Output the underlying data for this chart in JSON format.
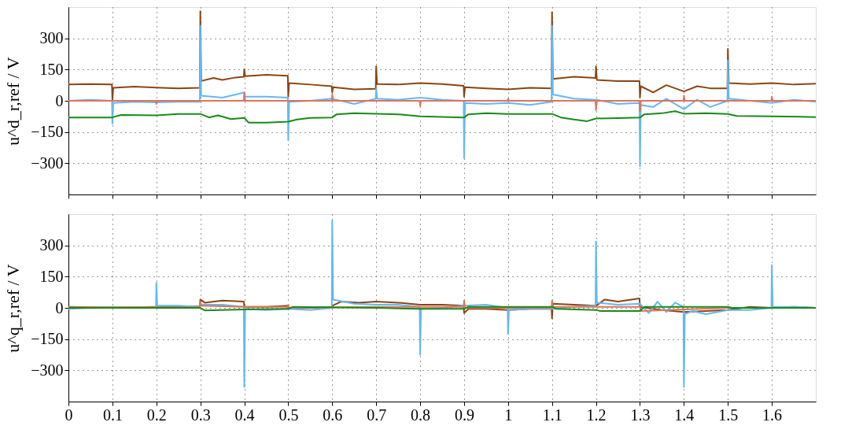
{
  "chart_data": [
    {
      "type": "line",
      "ylabel": "u^d_r,ref / V",
      "xlim": [
        0,
        1.7
      ],
      "ylim": [
        -450,
        450
      ],
      "grid": true,
      "tick_labels": "y",
      "line_style": "solid",
      "xticks": [
        0,
        0.1,
        0.2,
        0.3,
        0.4,
        0.5,
        0.6,
        0.7,
        0.8,
        0.9,
        1,
        1.1,
        1.2,
        1.3,
        1.4,
        1.5,
        1.6
      ],
      "yticks": [
        -300,
        -150,
        0,
        150,
        300
      ],
      "series": [
        {
          "color": "#8b4513",
          "x": [
            0,
            0.05,
            0.099,
            0.1,
            0.102,
            0.15,
            0.2,
            0.25,
            0.299,
            0.3,
            0.302,
            0.33,
            0.35,
            0.38,
            0.399,
            0.4,
            0.402,
            0.45,
            0.499,
            0.5,
            0.502,
            0.55,
            0.599,
            0.6,
            0.602,
            0.65,
            0.699,
            0.7,
            0.702,
            0.75,
            0.8,
            0.85,
            0.899,
            0.9,
            0.902,
            0.95,
            1.0,
            1.05,
            1.099,
            1.1,
            1.102,
            1.15,
            1.199,
            1.2,
            1.202,
            1.25,
            1.299,
            1.3,
            1.302,
            1.33,
            1.36,
            1.4,
            1.43,
            1.46,
            1.499,
            1.5,
            1.502,
            1.55,
            1.6,
            1.65,
            1.7
          ],
          "values": [
            78,
            80,
            78,
            5,
            62,
            68,
            63,
            60,
            62,
            430,
            95,
            110,
            100,
            112,
            115,
            150,
            118,
            125,
            120,
            20,
            85,
            78,
            70,
            40,
            65,
            55,
            58,
            165,
            80,
            78,
            85,
            80,
            72,
            20,
            65,
            60,
            55,
            62,
            60,
            425,
            105,
            115,
            110,
            165,
            100,
            95,
            95,
            15,
            70,
            40,
            75,
            45,
            70,
            60,
            60,
            250,
            85,
            80,
            85,
            78,
            82
          ]
        },
        {
          "color": "#63b8f5",
          "x": [
            0,
            0.05,
            0.099,
            0.1,
            0.102,
            0.15,
            0.2,
            0.25,
            0.299,
            0.3,
            0.302,
            0.35,
            0.4,
            0.402,
            0.45,
            0.499,
            0.5,
            0.502,
            0.55,
            0.6,
            0.65,
            0.699,
            0.7,
            0.702,
            0.75,
            0.8,
            0.85,
            0.899,
            0.9,
            0.902,
            0.95,
            1.0,
            1.05,
            1.099,
            1.1,
            1.102,
            1.15,
            1.2,
            1.25,
            1.299,
            1.3,
            1.302,
            1.33,
            1.36,
            1.4,
            1.43,
            1.46,
            1.499,
            1.5,
            1.502,
            1.55,
            1.6,
            1.65,
            1.7
          ],
          "values": [
            0,
            5,
            0,
            -110,
            -10,
            -5,
            -8,
            -5,
            -5,
            360,
            25,
            15,
            40,
            20,
            20,
            15,
            -190,
            -5,
            0,
            10,
            -15,
            10,
            60,
            10,
            5,
            15,
            5,
            0,
            -275,
            -10,
            -15,
            -10,
            -20,
            -5,
            360,
            30,
            10,
            5,
            -15,
            -10,
            -315,
            -20,
            -30,
            10,
            -40,
            5,
            -30,
            0,
            195,
            10,
            0,
            -10,
            5,
            -5
          ]
        },
        {
          "color": "#e0735a",
          "x": [
            0,
            0.199,
            0.2,
            0.202,
            0.399,
            0.4,
            0.402,
            0.599,
            0.6,
            0.602,
            0.799,
            0.8,
            0.802,
            0.999,
            1.0,
            1.002,
            1.199,
            1.2,
            1.202,
            1.299,
            1.3,
            1.302,
            1.399,
            1.4,
            1.402,
            1.599,
            1.6,
            1.602,
            1.7
          ],
          "values": [
            0,
            0,
            -15,
            0,
            0,
            40,
            0,
            0,
            30,
            0,
            0,
            -25,
            0,
            0,
            10,
            0,
            0,
            -45,
            0,
            0,
            -50,
            0,
            0,
            25,
            0,
            0,
            20,
            0,
            0
          ]
        },
        {
          "color": "#1a8a1a",
          "x": [
            0,
            0.099,
            0.12,
            0.2,
            0.25,
            0.3,
            0.32,
            0.34,
            0.37,
            0.4,
            0.41,
            0.45,
            0.5,
            0.52,
            0.55,
            0.6,
            0.61,
            0.65,
            0.7,
            0.75,
            0.8,
            0.9,
            0.91,
            0.95,
            1.0,
            1.1,
            1.12,
            1.15,
            1.18,
            1.2,
            1.25,
            1.3,
            1.31,
            1.35,
            1.38,
            1.4,
            1.45,
            1.5,
            1.52,
            1.6,
            1.7
          ],
          "values": [
            -80,
            -80,
            -68,
            -70,
            -63,
            -63,
            -80,
            -70,
            -88,
            -82,
            -105,
            -105,
            -100,
            -90,
            -82,
            -80,
            -65,
            -60,
            -62,
            -65,
            -75,
            -80,
            -65,
            -60,
            -63,
            -63,
            -80,
            -90,
            -98,
            -85,
            -83,
            -80,
            -65,
            -60,
            -50,
            -62,
            -60,
            -63,
            -73,
            -75,
            -78
          ]
        }
      ]
    },
    {
      "type": "line",
      "ylabel": "u^q_r,ref / V",
      "xlim": [
        0,
        1.7
      ],
      "ylim": [
        -450,
        450
      ],
      "grid": true,
      "line_style": "solid",
      "xticks": [
        0,
        0.1,
        0.2,
        0.3,
        0.4,
        0.5,
        0.6,
        0.7,
        0.8,
        0.9,
        1,
        1.1,
        1.2,
        1.3,
        1.4,
        1.5,
        1.6
      ],
      "yticks": [
        -300,
        -150,
        0,
        150,
        300
      ],
      "series": [
        {
          "color": "#8b4513",
          "x": [
            0,
            0.1,
            0.2,
            0.299,
            0.3,
            0.31,
            0.35,
            0.399,
            0.4,
            0.45,
            0.499,
            0.5,
            0.55,
            0.599,
            0.6,
            0.62,
            0.66,
            0.7,
            0.75,
            0.8,
            0.85,
            0.899,
            0.9,
            0.91,
            0.95,
            1.0,
            1.05,
            1.099,
            1.1,
            1.102,
            1.15,
            1.199,
            1.2,
            1.22,
            1.25,
            1.299,
            1.3,
            1.35,
            1.4,
            1.45,
            1.5,
            1.55,
            1.6,
            1.65,
            1.7
          ],
          "values": [
            5,
            2,
            5,
            8,
            40,
            25,
            35,
            30,
            5,
            5,
            10,
            -5,
            0,
            5,
            10,
            30,
            25,
            30,
            25,
            15,
            15,
            10,
            -25,
            -5,
            -5,
            -10,
            -5,
            -5,
            -50,
            20,
            15,
            10,
            10,
            40,
            30,
            45,
            5,
            -10,
            -20,
            -15,
            -10,
            5,
            0,
            5,
            0
          ]
        },
        {
          "color": "#63b8f5",
          "x": [
            0,
            0.1,
            0.199,
            0.2,
            0.202,
            0.25,
            0.299,
            0.3,
            0.35,
            0.399,
            0.4,
            0.402,
            0.45,
            0.5,
            0.55,
            0.599,
            0.6,
            0.602,
            0.65,
            0.7,
            0.75,
            0.799,
            0.8,
            0.802,
            0.85,
            0.9,
            0.95,
            0.999,
            1.0,
            1.002,
            1.05,
            1.1,
            1.15,
            1.199,
            1.2,
            1.202,
            1.25,
            1.3,
            1.32,
            1.34,
            1.36,
            1.38,
            1.399,
            1.4,
            1.402,
            1.42,
            1.45,
            1.5,
            1.55,
            1.599,
            1.6,
            1.602,
            1.65,
            1.7
          ],
          "values": [
            -5,
            5,
            0,
            120,
            10,
            10,
            5,
            15,
            15,
            5,
            -380,
            -5,
            -10,
            -5,
            -10,
            0,
            420,
            40,
            20,
            15,
            15,
            5,
            -225,
            -5,
            0,
            10,
            15,
            0,
            -125,
            -10,
            -5,
            -5,
            5,
            10,
            320,
            25,
            15,
            20,
            -25,
            30,
            -20,
            25,
            5,
            -380,
            -30,
            -15,
            -30,
            -10,
            -10,
            0,
            205,
            5,
            5,
            0
          ]
        },
        {
          "color": "#e0735a",
          "x": [
            0,
            0.299,
            0.3,
            0.302,
            0.4,
            0.499,
            0.5,
            0.502,
            0.7,
            0.899,
            0.9,
            0.902,
            1.099,
            1.1,
            1.102,
            1.3,
            1.302,
            1.5,
            1.7
          ],
          "values": [
            3,
            3,
            30,
            10,
            5,
            5,
            15,
            0,
            5,
            5,
            35,
            0,
            0,
            35,
            5,
            5,
            -15,
            0,
            0
          ]
        },
        {
          "color": "#1a8a1a",
          "x": [
            0,
            0.3,
            0.31,
            0.4,
            0.5,
            0.51,
            0.7,
            0.8,
            0.9,
            0.91,
            1.1,
            1.11,
            1.2,
            1.21,
            1.3,
            1.31,
            1.5,
            1.51,
            1.7
          ],
          "values": [
            0,
            0,
            -12,
            -8,
            -5,
            5,
            0,
            -5,
            -5,
            5,
            5,
            -5,
            -10,
            -15,
            -15,
            5,
            5,
            0,
            0
          ]
        }
      ]
    }
  ]
}
